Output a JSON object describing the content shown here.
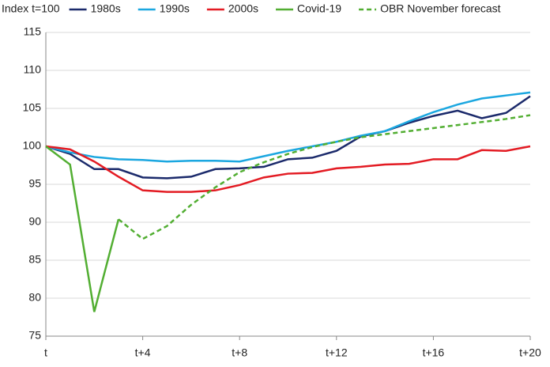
{
  "chart_data": {
    "type": "line",
    "y_label": "Index t=100",
    "categories": [
      "t",
      null,
      null,
      null,
      "t+4",
      null,
      null,
      null,
      "t+8",
      null,
      null,
      null,
      "t+12",
      null,
      null,
      null,
      "t+16",
      null,
      null,
      null,
      "t+20"
    ],
    "series": [
      {
        "name": "1980s",
        "color": "#1b2a6b",
        "dashed": false,
        "values": [
          100,
          99,
          97,
          97,
          95.9,
          95.8,
          96,
          97,
          97.1,
          97.3,
          98.3,
          98.5,
          99.4,
          101.3,
          102,
          103.1,
          104,
          104.7,
          103.7,
          104.4,
          106.6
        ]
      },
      {
        "name": "1990s",
        "color": "#1ba7e0",
        "dashed": false,
        "values": [
          100,
          99.2,
          98.6,
          98.3,
          98.2,
          98,
          98.1,
          98.1,
          98,
          98.7,
          99.4,
          100,
          100.6,
          101.4,
          102,
          103.3,
          104.5,
          105.5,
          106.3,
          106.7,
          107.1
        ]
      },
      {
        "name": "2000s",
        "color": "#e31b23",
        "dashed": false,
        "values": [
          100,
          99.6,
          98,
          96,
          94.2,
          94,
          94,
          94.2,
          94.9,
          95.9,
          96.4,
          96.5,
          97.1,
          97.3,
          97.6,
          97.7,
          98.3,
          98.3,
          99.5,
          99.4,
          100
        ]
      },
      {
        "name": "Covid-19",
        "color": "#52ae32",
        "dashed": false,
        "values": [
          100,
          97.6,
          78.2,
          90.4,
          null,
          null,
          null,
          null,
          null,
          null,
          null,
          null,
          null,
          null,
          null,
          null,
          null,
          null,
          null,
          null,
          null
        ]
      },
      {
        "name": "OBR November forecast",
        "color": "#52ae32",
        "dashed": true,
        "values": [
          null,
          null,
          null,
          90.4,
          87.8,
          89.5,
          92.3,
          94.6,
          96.6,
          97.9,
          99,
          99.9,
          100.6,
          101.2,
          101.6,
          102,
          102.4,
          102.8,
          103.2,
          103.6,
          104.1
        ]
      }
    ],
    "ylim": [
      75,
      115
    ],
    "yticks": [
      75,
      80,
      85,
      90,
      95,
      100,
      105,
      110,
      115
    ],
    "grid": true
  }
}
